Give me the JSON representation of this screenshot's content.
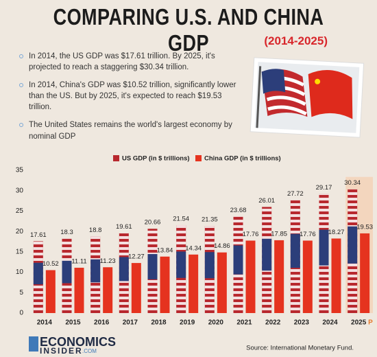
{
  "header": {
    "title": "COMPARING U.S. AND CHINA GDP",
    "subtitle": "(2014-2025)"
  },
  "bullets": [
    "In 2014, the US GDP was $17.61 trillion. By 2025, it's projected to reach a staggering $30.34 trillion.",
    "In 2014, China's GDP was $10.52 trillion, significantly lower than the US. But by 2025, it's expected to reach $19.53 trillion.",
    "The United States remains the world's largest economy by nominal GDP"
  ],
  "chart_data": {
    "type": "bar",
    "categories": [
      "2014",
      "2015",
      "2016",
      "2017",
      "2018",
      "2019",
      "2020",
      "2021",
      "2022",
      "2023",
      "2024",
      "2025"
    ],
    "projection_marker": "P",
    "series": [
      {
        "name": "US GDP (in $ trillions)",
        "color": "#b8282e",
        "values": [
          17.61,
          18.3,
          18.8,
          19.61,
          20.66,
          21.54,
          21.35,
          23.68,
          26.01,
          27.72,
          29.17,
          30.34
        ]
      },
      {
        "name": "China GDP (in $ trillions)",
        "color": "#e5331f",
        "values": [
          10.52,
          11.11,
          11.23,
          12.27,
          13.84,
          14.34,
          14.86,
          17.76,
          17.85,
          17.76,
          18.27,
          19.53
        ]
      }
    ],
    "ylim": [
      0,
      35
    ],
    "yticks": [
      0,
      5,
      10,
      15,
      20,
      25,
      30,
      35
    ],
    "grid": false
  },
  "footer": {
    "logo_line1": "ECONOMICS",
    "logo_line2": "INSIDER",
    "logo_suffix": ".COM",
    "source": "Source: International Monetary Fund."
  }
}
